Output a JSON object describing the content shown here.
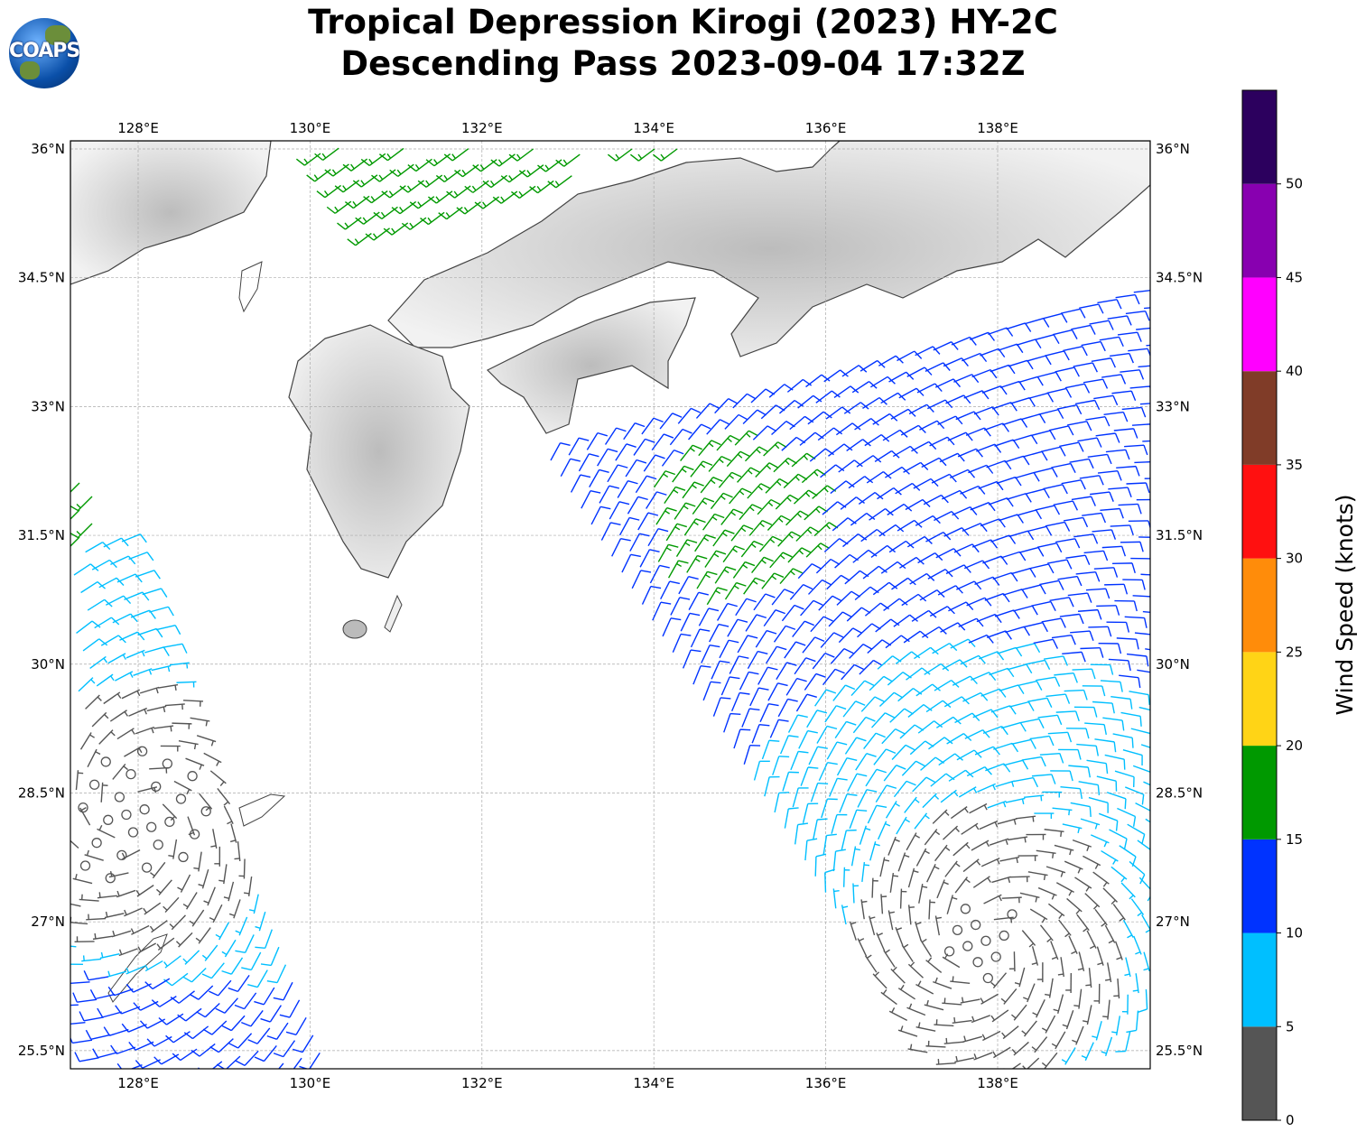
{
  "header": {
    "title_line1": "Tropical Depression Kirogi (2023) HY-2C",
    "title_line2": "Descending Pass 2023-09-04 17:32Z",
    "logo_text": "COAPS"
  },
  "chart_data": {
    "type": "map-wind-barbs",
    "title": "Tropical Depression Kirogi (2023) HY-2C Descending Pass 2023-09-04 17:32Z",
    "lon_ticks": [
      "128°E",
      "130°E",
      "132°E",
      "134°E",
      "136°E",
      "138°E"
    ],
    "lon_values": [
      128,
      130,
      132,
      134,
      136,
      138
    ],
    "lat_ticks": [
      "36°N",
      "34.5°N",
      "33°N",
      "31.5°N",
      "30°N",
      "28.5°N",
      "27°N",
      "25.5°N"
    ],
    "lat_values": [
      36,
      34.5,
      33,
      31.5,
      30,
      28.5,
      27,
      25.5
    ],
    "lon_range": [
      127.2,
      139.8
    ],
    "lat_range": [
      25.3,
      36.1
    ],
    "colorbar": {
      "label": "Wind Speed (knots)",
      "ticks": [
        "0",
        "5",
        "10",
        "15",
        "20",
        "25",
        "30",
        "35",
        "40",
        "45",
        "50"
      ],
      "bins": [
        0,
        5,
        10,
        15,
        20,
        25,
        30,
        35,
        40,
        45,
        50,
        55
      ],
      "colors": [
        "#555555",
        "#00bfff",
        "#0033ff",
        "#009900",
        "#ffd416",
        "#ff8c0a",
        "#ff1010",
        "#803c28",
        "#ff00ff",
        "#8800b0",
        "#2c005e"
      ]
    }
  }
}
